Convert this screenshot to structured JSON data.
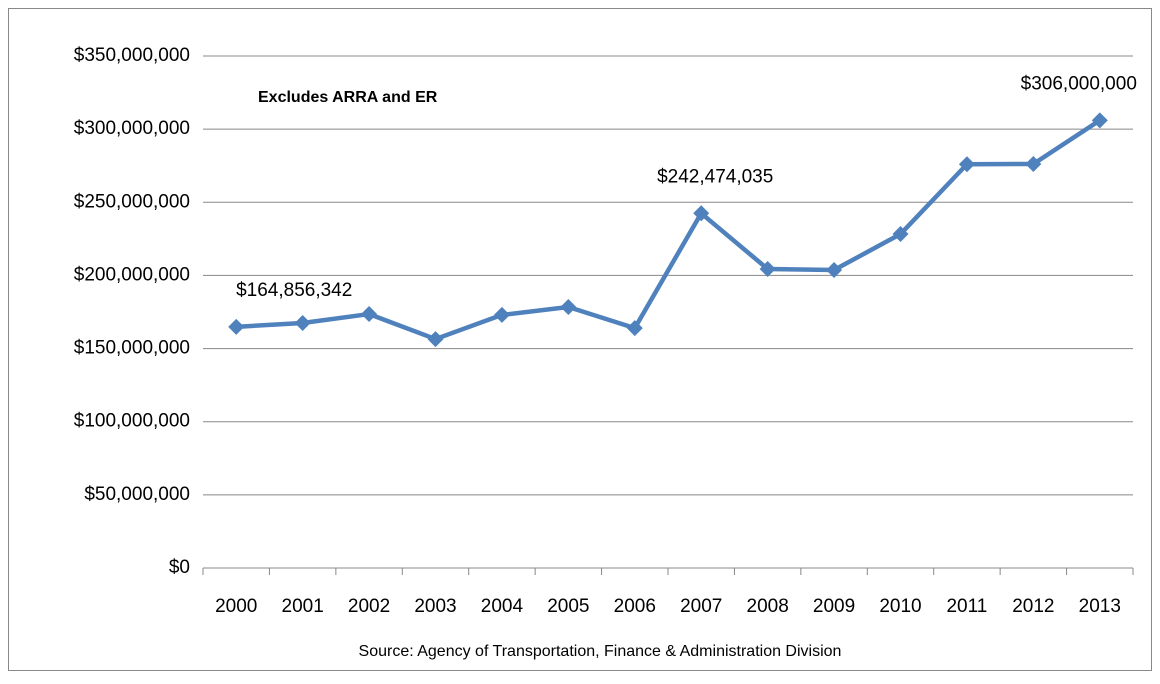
{
  "chart_data": {
    "type": "line",
    "annotation": "Excludes ARRA and ER",
    "source": "Source: Agency of Transportation, Finance & Administration Division",
    "categories": [
      "2000",
      "2001",
      "2002",
      "2003",
      "2004",
      "2005",
      "2006",
      "2007",
      "2008",
      "2009",
      "2010",
      "2011",
      "2012",
      "2013"
    ],
    "series": [
      {
        "color": "#4f81bd",
        "values": [
          164856342,
          167500000,
          173600000,
          156500000,
          173000000,
          178400000,
          164000000,
          242474035,
          204400000,
          203700000,
          228300000,
          276000000,
          276200000,
          306000000
        ],
        "value_labels": [
          "$164,856,342",
          null,
          null,
          null,
          null,
          null,
          null,
          "$242,474,035",
          null,
          null,
          null,
          null,
          null,
          "$306,000,000"
        ]
      }
    ],
    "ylim": [
      0,
      350000000
    ],
    "yticks": [
      {
        "value": 0,
        "label": "$0"
      },
      {
        "value": 50000000,
        "label": "$50,000,000"
      },
      {
        "value": 100000000,
        "label": "$100,000,000"
      },
      {
        "value": 150000000,
        "label": "$150,000,000"
      },
      {
        "value": 200000000,
        "label": "$200,000,000"
      },
      {
        "value": 250000000,
        "label": "$250,000,000"
      },
      {
        "value": 300000000,
        "label": "$300,000,000"
      },
      {
        "value": 350000000,
        "label": "$350,000,000"
      }
    ],
    "grid": true
  }
}
